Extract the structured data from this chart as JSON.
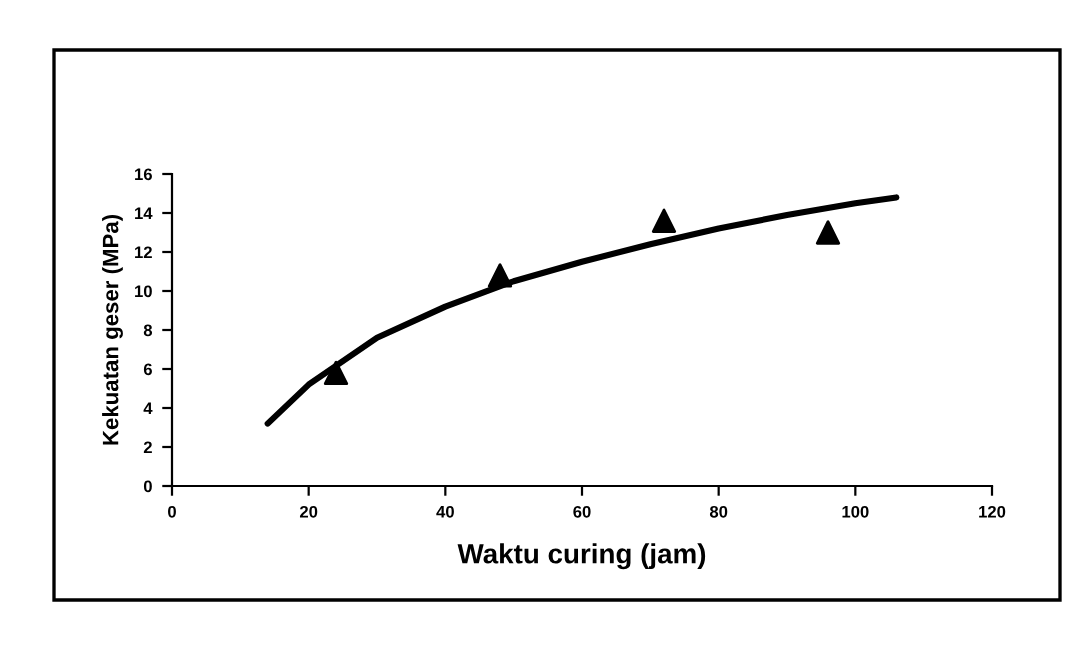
{
  "chart_data": {
    "type": "scatter",
    "xlabel": "Waktu curing (jam)",
    "ylabel": "Kekuatan geser (MPa)",
    "series": [
      {
        "color": "#000000",
        "marker": "triangle",
        "x": [
          24,
          48,
          72,
          96
        ],
        "values": [
          5.8,
          10.8,
          13.6,
          13.0
        ]
      },
      {
        "type": "line",
        "color": "#000000",
        "line_style": "solid",
        "marker": "none",
        "x": [
          14,
          20,
          30,
          40,
          50,
          60,
          70,
          80,
          90,
          100,
          106
        ],
        "values": [
          3.2,
          5.2,
          7.6,
          9.2,
          10.5,
          11.5,
          12.4,
          13.2,
          13.9,
          14.5,
          14.8
        ]
      }
    ],
    "xlim": [
      0,
      120
    ],
    "xticks": [
      0,
      20,
      40,
      60,
      80,
      100,
      120
    ],
    "ylim": [
      0,
      16
    ],
    "yticks": [
      0,
      2,
      4,
      6,
      8,
      10,
      12,
      14,
      16
    ],
    "grid": false,
    "legend": false
  }
}
